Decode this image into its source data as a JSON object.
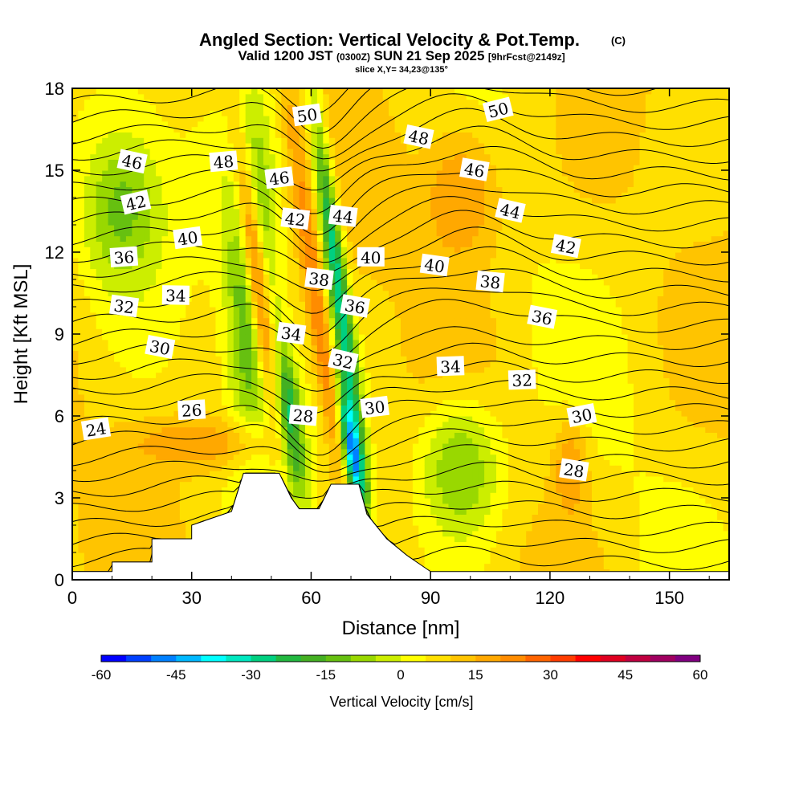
{
  "title": {
    "main": "Angled Section: Vertical Velocity & Pot.Temp.",
    "badge": "(C)",
    "valid_prefix": "Valid 1200 JST",
    "valid_utc": "(0300Z)",
    "valid_date": "SUN 21 Sep 2025",
    "forecast": "[9hrFcst@2149z]",
    "slice": "slice X,Y= 34,23@135°"
  },
  "chart_data": {
    "type": "heatmap",
    "xlabel": "Distance [nm]",
    "ylabel": "Height [Kft MSL]",
    "xlim": [
      0,
      165
    ],
    "ylim": [
      0,
      18
    ],
    "x_ticks": [
      0,
      30,
      60,
      90,
      120,
      150
    ],
    "y_ticks": [
      0,
      3,
      6,
      9,
      12,
      15,
      18
    ],
    "colorbar": {
      "label": "Vertical Velocity [cm/s]",
      "range": [
        -60,
        60
      ],
      "step": 5,
      "tick_values": [
        -60,
        -45,
        -30,
        -15,
        0,
        15,
        30,
        45,
        60
      ],
      "colors": [
        "#0000ff",
        "#0040ff",
        "#0080ff",
        "#00b8ff",
        "#00ffff",
        "#00e8c0",
        "#00d080",
        "#22b840",
        "#44b022",
        "#66c010",
        "#99d800",
        "#ccee00",
        "#ffff00",
        "#ffe000",
        "#ffc400",
        "#ffa800",
        "#ff8c00",
        "#ff6400",
        "#ff3c00",
        "#ff0000",
        "#e00020",
        "#c00040",
        "#a00060",
        "#800080"
      ]
    },
    "terrain_profile": [
      [
        0,
        0.3
      ],
      [
        10,
        0.3
      ],
      [
        10,
        0.65
      ],
      [
        20,
        0.65
      ],
      [
        20,
        1.5
      ],
      [
        30,
        1.5
      ],
      [
        30,
        2.0
      ],
      [
        40,
        2.5
      ],
      [
        43,
        3.9
      ],
      [
        52,
        3.9
      ],
      [
        55,
        3.0
      ],
      [
        57,
        2.6
      ],
      [
        62,
        2.6
      ],
      [
        65,
        3.5
      ],
      [
        72,
        3.5
      ],
      [
        74,
        2.4
      ],
      [
        79,
        1.5
      ],
      [
        84,
        0.9
      ],
      [
        88,
        0.5
      ],
      [
        90,
        0.3
      ],
      [
        165,
        0.3
      ]
    ],
    "velocity_features": [
      {
        "x": [
          38,
          52
        ],
        "z": [
          4,
          18
        ],
        "value": -20
      },
      {
        "x": [
          50,
          58
        ],
        "z": [
          3,
          9
        ],
        "value": -35
      },
      {
        "x": [
          58,
          64
        ],
        "z": [
          3,
          18
        ],
        "value": 25
      },
      {
        "x": [
          64,
          70
        ],
        "z": [
          3,
          18
        ],
        "value": -30
      },
      {
        "x": [
          68,
          73
        ],
        "z": [
          2.5,
          7
        ],
        "value": -50
      },
      {
        "x": [
          43,
          50
        ],
        "z": [
          4,
          18
        ],
        "value": 20
      },
      {
        "x": [
          85,
          110
        ],
        "z": [
          1,
          7
        ],
        "value": -10
      },
      {
        "x": [
          85,
          110
        ],
        "z": [
          11,
          17
        ],
        "value": 20
      },
      {
        "x": [
          120,
          130
        ],
        "z": [
          2,
          6
        ],
        "value": 20
      },
      {
        "x": [
          10,
          50
        ],
        "z": [
          4,
          6
        ],
        "value": 20
      },
      {
        "x": [
          0,
          25
        ],
        "z": [
          10,
          17
        ],
        "value": -12
      }
    ],
    "theta_contours": [
      {
        "level": 24,
        "label_xy": [
          6,
          5.5
        ]
      },
      {
        "level": 26,
        "label_xy": [
          30,
          6.2
        ]
      },
      {
        "level": 28,
        "label_xy": [
          58,
          6.0
        ],
        "label_xy2": [
          126,
          4.0
        ]
      },
      {
        "level": 30,
        "label_xy": [
          22,
          8.5
        ],
        "label_xy2": [
          76,
          6.3
        ],
        "label_xy3": [
          128,
          6.0
        ]
      },
      {
        "level": 32,
        "label_xy": [
          13,
          10.0
        ],
        "label_xy2": [
          68,
          8.0
        ],
        "label_xy3": [
          113,
          7.3
        ]
      },
      {
        "level": 34,
        "label_xy": [
          26,
          10.4
        ],
        "label_xy2": [
          55,
          9.0
        ],
        "label_xy3": [
          95,
          7.8
        ]
      },
      {
        "level": 36,
        "label_xy": [
          13,
          11.8
        ],
        "label_xy2": [
          71,
          10.0
        ],
        "label_xy3": [
          118,
          9.6
        ]
      },
      {
        "level": 38,
        "label_xy": [
          62,
          11.0
        ],
        "label_xy2": [
          105,
          10.9
        ]
      },
      {
        "level": 40,
        "label_xy": [
          29,
          12.5
        ],
        "label_xy2": [
          75,
          11.8
        ],
        "label_xy3": [
          91,
          11.5
        ]
      },
      {
        "level": 42,
        "label_xy": [
          16,
          13.8
        ],
        "label_xy2": [
          56,
          13.2
        ],
        "label_xy3": [
          124,
          12.2
        ]
      },
      {
        "level": 44,
        "label_xy": [
          68,
          13.3
        ],
        "label_xy2": [
          110,
          13.5
        ]
      },
      {
        "level": 46,
        "label_xy": [
          15,
          15.3
        ],
        "label_xy2": [
          52,
          14.7
        ],
        "label_xy3": [
          101,
          15.0
        ]
      },
      {
        "level": 48,
        "label_xy": [
          38,
          15.3
        ],
        "label_xy2": [
          87,
          16.2
        ]
      },
      {
        "level": 50,
        "label_xy": [
          59,
          17.0
        ],
        "label_xy2": [
          107,
          17.2
        ]
      }
    ]
  }
}
